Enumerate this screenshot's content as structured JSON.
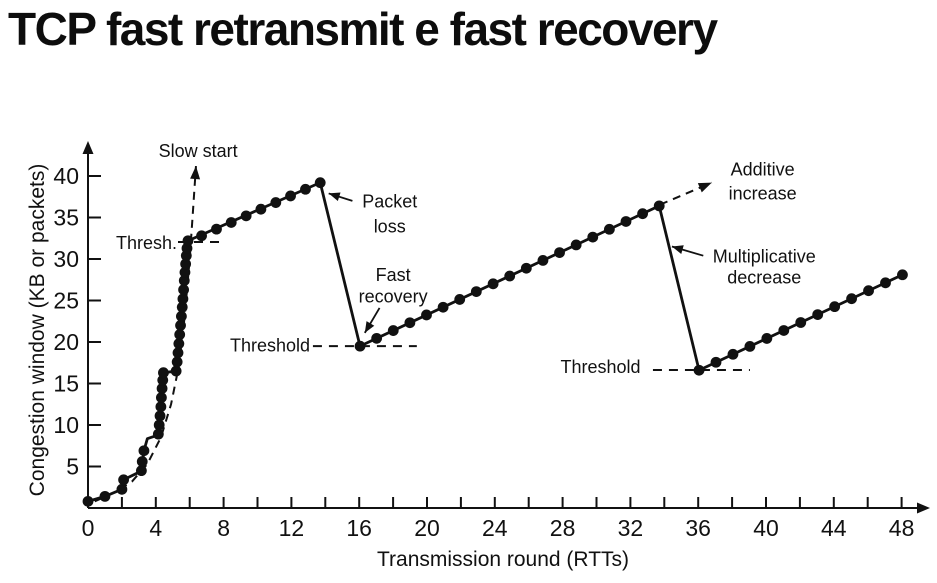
{
  "page": {
    "title": "TCP fast retransmit e fast recovery"
  },
  "chart_data": {
    "type": "line",
    "title": "TCP fast retransmit e fast recovery",
    "xlabel": "Transmission round (RTTs)",
    "ylabel": "Congestion window (KB or packets)",
    "xlim": [
      0,
      49.5
    ],
    "ylim": [
      0,
      43.5
    ],
    "x_major_ticks": [
      0,
      4,
      8,
      12,
      16,
      20,
      24,
      28,
      32,
      36,
      40,
      44,
      48
    ],
    "x_minor_tick_step": 2,
    "y_ticks": [
      5,
      10,
      15,
      20,
      25,
      30,
      35,
      40
    ],
    "grid": false,
    "legend": "none",
    "colors": {
      "line": "#111111",
      "background": "#ffffff"
    },
    "series": [
      {
        "name": "congestion-window",
        "path": [
          [
            0,
            0.8
          ],
          [
            1,
            1.4
          ],
          [
            2,
            2.25
          ],
          [
            2.1,
            3.4
          ],
          [
            3.15,
            4.45
          ],
          [
            3.3,
            6.9
          ],
          [
            3.5,
            8.35
          ],
          [
            4.15,
            8.8
          ],
          [
            4.45,
            16.3
          ],
          [
            5.2,
            16.5
          ],
          [
            5.9,
            32.2
          ],
          [
            13.7,
            39.2
          ],
          [
            16.05,
            19.5
          ],
          [
            33.7,
            36.4
          ],
          [
            36.05,
            16.6
          ],
          [
            48.05,
            28.1
          ]
        ],
        "markers": [
          [
            0,
            0.8
          ],
          [
            1,
            1.4
          ],
          [
            2,
            2.25
          ],
          [
            2.1,
            3.4
          ],
          [
            3.15,
            4.5
          ],
          [
            3.2,
            5.6
          ],
          [
            3.3,
            6.9
          ],
          [
            4.15,
            8.9
          ],
          [
            4.2,
            10.0
          ],
          [
            4.25,
            11.1
          ],
          [
            4.3,
            12.2
          ],
          [
            4.33,
            13.3
          ],
          [
            4.37,
            14.4
          ],
          [
            4.41,
            15.4
          ],
          [
            4.45,
            16.3
          ],
          [
            5.2,
            16.5
          ],
          [
            5.26,
            17.6
          ],
          [
            5.31,
            18.7
          ],
          [
            5.36,
            19.8
          ],
          [
            5.41,
            20.9
          ],
          [
            5.46,
            22.0
          ],
          [
            5.51,
            23.1
          ],
          [
            5.56,
            24.2
          ],
          [
            5.6,
            25.2
          ],
          [
            5.64,
            26.3
          ],
          [
            5.68,
            27.4
          ],
          [
            5.72,
            28.4
          ],
          [
            5.76,
            29.4
          ],
          [
            5.8,
            30.4
          ],
          [
            5.84,
            31.3
          ],
          [
            5.9,
            32.2
          ],
          [
            6.7,
            32.8
          ],
          [
            7.58,
            33.6
          ],
          [
            8.45,
            34.4
          ],
          [
            9.33,
            35.2
          ],
          [
            10.2,
            36.0
          ],
          [
            11.08,
            36.8
          ],
          [
            11.95,
            37.6
          ],
          [
            12.83,
            38.4
          ],
          [
            13.7,
            39.2
          ],
          [
            16.05,
            19.5
          ],
          [
            17.03,
            20.44
          ],
          [
            18.01,
            21.38
          ],
          [
            18.99,
            22.32
          ],
          [
            19.97,
            23.26
          ],
          [
            20.95,
            24.19
          ],
          [
            21.93,
            25.13
          ],
          [
            22.91,
            26.07
          ],
          [
            23.9,
            27.01
          ],
          [
            24.88,
            27.95
          ],
          [
            25.86,
            28.89
          ],
          [
            26.84,
            29.83
          ],
          [
            27.82,
            30.77
          ],
          [
            28.8,
            31.7
          ],
          [
            29.78,
            32.64
          ],
          [
            30.76,
            33.58
          ],
          [
            31.74,
            34.52
          ],
          [
            32.72,
            35.46
          ],
          [
            33.7,
            36.4
          ],
          [
            36.05,
            16.6
          ],
          [
            37.05,
            17.56
          ],
          [
            38.05,
            18.52
          ],
          [
            39.05,
            19.47
          ],
          [
            40.05,
            20.43
          ],
          [
            41.05,
            21.39
          ],
          [
            42.05,
            22.35
          ],
          [
            43.05,
            23.3
          ],
          [
            44.05,
            24.26
          ],
          [
            45.05,
            25.22
          ],
          [
            46.05,
            26.18
          ],
          [
            47.05,
            27.13
          ],
          [
            48.05,
            28.1
          ]
        ]
      }
    ],
    "threshold_lines": [
      {
        "name": "thresh-line-1",
        "y": 32.05,
        "x_start": 5.31,
        "x_end": 8.14
      },
      {
        "name": "threshold-line-2",
        "y": 19.5,
        "x_start": 13.27,
        "x_end": 19.4
      },
      {
        "name": "threshold-line-3",
        "y": 16.63,
        "x_start": 33.33,
        "x_end": 39.05
      }
    ],
    "dashed_arrows": [
      {
        "name": "slow-start-trend",
        "points": [
          [
            0.4,
            0.8
          ],
          [
            1.6,
            1.9
          ],
          [
            2.6,
            3.2
          ],
          [
            3.5,
            5.3
          ],
          [
            4.3,
            8.5
          ],
          [
            4.9,
            12.5
          ],
          [
            5.35,
            17
          ],
          [
            5.7,
            23
          ],
          [
            6.0,
            30
          ],
          [
            6.2,
            36
          ],
          [
            6.37,
            41.2
          ]
        ]
      },
      {
        "name": "additive-increase-trend",
        "points": [
          [
            33.75,
            36.55
          ],
          [
            36.8,
            39.2
          ]
        ]
      }
    ],
    "callout_arrows": [
      {
        "name": "packet-loss-arrow",
        "from": [
          15.6,
          37.0
        ],
        "to": [
          14.2,
          37.9
        ]
      },
      {
        "name": "fast-recovery-arrow",
        "from": [
          17.2,
          24.1
        ],
        "to": [
          16.33,
          21.1
        ]
      },
      {
        "name": "multiplicative-decrease-arrow",
        "from": [
          36.3,
          30.4
        ],
        "to": [
          34.45,
          31.5
        ]
      }
    ],
    "annotations": [
      {
        "name": "slow-start-label",
        "text": "Slow start",
        "x": 6.5,
        "y": 43.0,
        "anchor": "middle"
      },
      {
        "name": "thresh-label",
        "text": "Thresh.",
        "x": 5.25,
        "y": 31.9,
        "anchor": "end"
      },
      {
        "name": "packet-loss-label-1",
        "text": "Packet",
        "x": 17.8,
        "y": 36.9,
        "anchor": "middle"
      },
      {
        "name": "packet-loss-label-2",
        "text": "loss",
        "x": 17.8,
        "y": 33.9,
        "anchor": "middle"
      },
      {
        "name": "fast-recovery-label-1",
        "text": "Fast",
        "x": 18.0,
        "y": 28.1,
        "anchor": "middle"
      },
      {
        "name": "fast-recovery-label-2",
        "text": "recovery",
        "x": 18.0,
        "y": 25.5,
        "anchor": "middle"
      },
      {
        "name": "threshold-label-2",
        "text": "Threshold",
        "x": 13.1,
        "y": 19.6,
        "anchor": "end"
      },
      {
        "name": "threshold-label-3",
        "text": "Threshold",
        "x": 32.6,
        "y": 17.0,
        "anchor": "end"
      },
      {
        "name": "additive-increase-label-1",
        "text": "Additive",
        "x": 39.8,
        "y": 40.8,
        "anchor": "middle"
      },
      {
        "name": "additive-increase-label-2",
        "text": "increase",
        "x": 39.8,
        "y": 37.9,
        "anchor": "middle"
      },
      {
        "name": "mult-decrease-label-1",
        "text": "Multiplicative",
        "x": 39.9,
        "y": 30.3,
        "anchor": "middle"
      },
      {
        "name": "mult-decrease-label-2",
        "text": "decrease",
        "x": 39.9,
        "y": 27.8,
        "anchor": "middle"
      }
    ]
  }
}
